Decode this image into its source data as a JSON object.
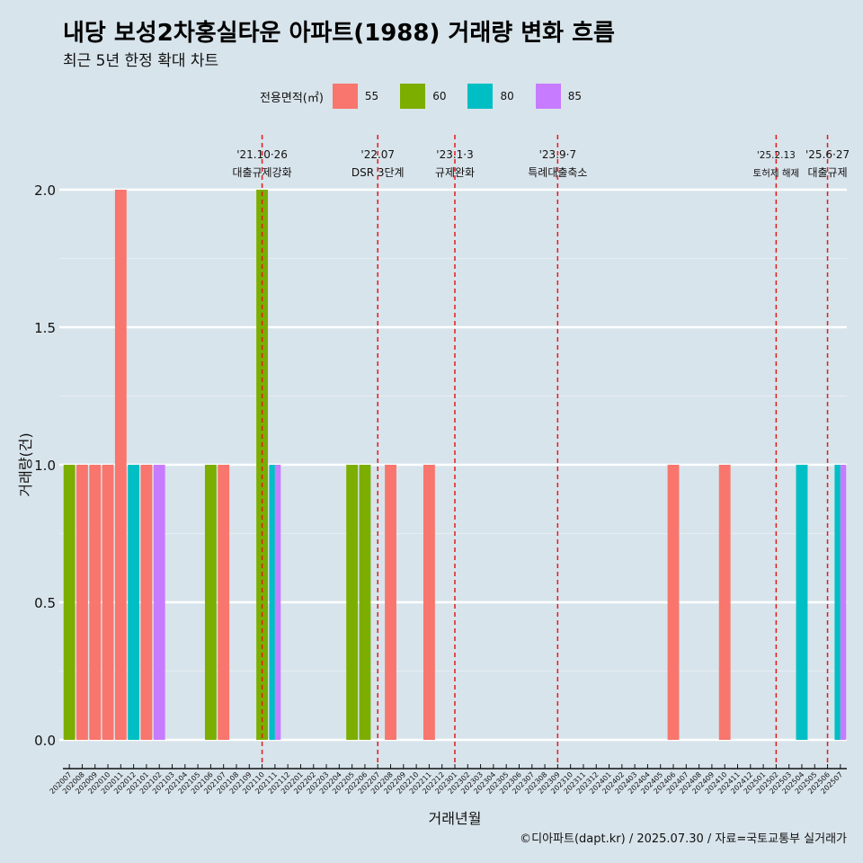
{
  "title": "내당 보성2차홍실타운 아파트(1988) 거래량 변화 흐름",
  "subtitle": "최근 5년 한정 확대 차트",
  "legend_title": "전용면적(㎡)",
  "caption": "©디아파트(dapt.kr) / 2025.07.30 / 자료=국토교통부 실거래가",
  "colors": {
    "55": "#f8766d",
    "60": "#7cae00",
    "80": "#00bfc4",
    "85": "#c77cff",
    "background": "#d8e4eb",
    "vline": "#e41a1c"
  },
  "chart_data": {
    "type": "bar",
    "xlabel": "거래년월",
    "ylabel": "거래량(건)",
    "ylim": [
      0,
      2
    ],
    "yticks": [
      "0.0",
      "0.5",
      "1.0",
      "1.5",
      "2.0"
    ],
    "categories": [
      "202007",
      "202008",
      "202009",
      "202010",
      "202011",
      "202012",
      "202101",
      "202102",
      "202103",
      "202104",
      "202105",
      "202106",
      "202107",
      "202108",
      "202109",
      "202110",
      "202111",
      "202112",
      "202201",
      "202202",
      "202203",
      "202204",
      "202205",
      "202206",
      "202207",
      "202208",
      "202209",
      "202210",
      "202211",
      "202212",
      "202301",
      "202302",
      "202303",
      "202304",
      "202305",
      "202306",
      "202307",
      "202308",
      "202309",
      "202310",
      "202311",
      "202312",
      "202401",
      "202402",
      "202403",
      "202404",
      "202405",
      "202406",
      "202407",
      "202408",
      "202409",
      "202410",
      "202411",
      "202412",
      "202501",
      "202502",
      "202503",
      "202504",
      "202505",
      "202506",
      "202507"
    ],
    "series_order": [
      "55",
      "60",
      "80",
      "85"
    ],
    "bars": [
      {
        "month": "202007",
        "area": "60",
        "value": 1
      },
      {
        "month": "202008",
        "area": "55",
        "value": 1
      },
      {
        "month": "202009",
        "area": "55",
        "value": 1
      },
      {
        "month": "202010",
        "area": "55",
        "value": 1
      },
      {
        "month": "202011",
        "area": "55",
        "value": 2
      },
      {
        "month": "202012",
        "area": "80",
        "value": 1
      },
      {
        "month": "202101",
        "area": "55",
        "value": 1
      },
      {
        "month": "202102",
        "area": "85",
        "value": 1
      },
      {
        "month": "202106",
        "area": "60",
        "value": 1
      },
      {
        "month": "202107",
        "area": "55",
        "value": 1
      },
      {
        "month": "202110",
        "area": "60",
        "value": 2
      },
      {
        "month": "202111",
        "area": "80",
        "value": 1
      },
      {
        "month": "202111",
        "area": "85",
        "value": 1
      },
      {
        "month": "202205",
        "area": "60",
        "value": 1
      },
      {
        "month": "202206",
        "area": "60",
        "value": 1
      },
      {
        "month": "202208",
        "area": "55",
        "value": 1
      },
      {
        "month": "202211",
        "area": "55",
        "value": 1
      },
      {
        "month": "202406",
        "area": "55",
        "value": 1
      },
      {
        "month": "202410",
        "area": "55",
        "value": 1
      },
      {
        "month": "202504",
        "area": "80",
        "value": 1
      },
      {
        "month": "202507",
        "area": "80",
        "value": 1
      },
      {
        "month": "202507",
        "area": "85",
        "value": 1
      }
    ],
    "annotations": [
      {
        "month": "202110",
        "line1": "'21.10·26",
        "line2": "대출규제강화",
        "small": false
      },
      {
        "month": "202207",
        "line1": "'22.07",
        "line2": "DSR 3단계",
        "small": false
      },
      {
        "month": "202301",
        "line1": "'23.1·3",
        "line2": "규제완화",
        "small": false
      },
      {
        "month": "202309",
        "line1": "'23.9·7",
        "line2": "특례대출축소",
        "small": false
      },
      {
        "month": "202502",
        "line1": "'25.2.13",
        "line2": "토허제 해제",
        "small": true
      },
      {
        "month": "202506",
        "line1": "'25.6·27",
        "line2": "대출규제",
        "small": false
      }
    ]
  }
}
